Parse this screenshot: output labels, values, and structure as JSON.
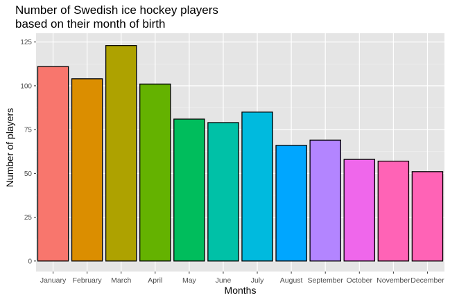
{
  "chart_data": {
    "type": "bar",
    "title": "Number of Swedish ice hockey players",
    "subtitle": "based on their month of birth",
    "xlabel": "Months",
    "ylabel": "Number of players",
    "categories": [
      "January",
      "February",
      "March",
      "April",
      "May",
      "June",
      "July",
      "August",
      "September",
      "October",
      "November",
      "December"
    ],
    "values": [
      111,
      104,
      123,
      101,
      81,
      79,
      85,
      66,
      69,
      58,
      57,
      51
    ],
    "colors": [
      "#F8766D",
      "#DB8E00",
      "#AEA200",
      "#64B200",
      "#00BD5C",
      "#00C1A7",
      "#00BADE",
      "#00A6FF",
      "#B385FF",
      "#EF67EB",
      "#FF63B6",
      "#FF63B6"
    ],
    "bar_outline": "#000000",
    "panel_background": "#E5E5E5",
    "grid": true,
    "legend": "none",
    "ylim": [
      -6,
      130
    ],
    "yticks": [
      0,
      25,
      50,
      75,
      100,
      125
    ]
  }
}
